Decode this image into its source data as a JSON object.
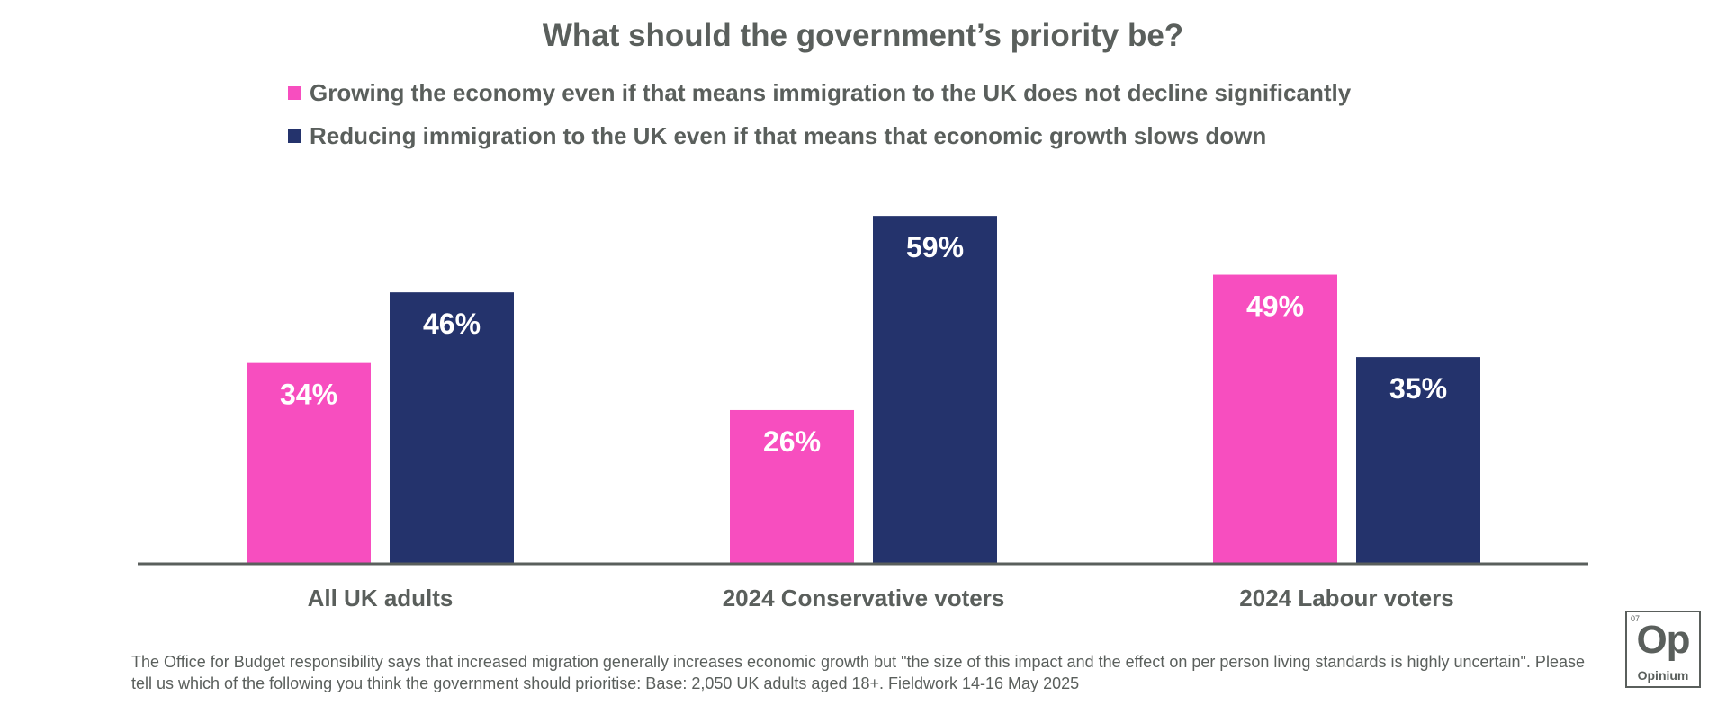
{
  "chart_data": {
    "type": "bar",
    "title": "What should the government’s priority be?",
    "categories": [
      "All UK adults",
      "2024 Conservative voters",
      "2024 Labour voters"
    ],
    "series": [
      {
        "name": "Growing the economy even if that means immigration to the UK does not decline significantly",
        "color": "#F74EBF",
        "values": [
          34,
          26,
          49
        ],
        "labels": [
          "34%",
          "26%",
          "49%"
        ]
      },
      {
        "name": "Reducing immigration to the UK even if that means that economic growth slows down",
        "color": "#24336C",
        "values": [
          46,
          59,
          35
        ],
        "labels": [
          "46%",
          "59%",
          "35%"
        ]
      }
    ],
    "xlabel": "",
    "ylabel": "",
    "ylim": [
      0,
      59
    ],
    "grid": false,
    "legend_position": "top-left"
  },
  "footnote": "The Office for Budget responsibility says that increased migration generally increases economic growth but \"the size of this impact and the effect on per person living standards is highly uncertain\". Please tell us which of the following you think the government should prioritise: Base: 2,050 UK adults aged 18+. Fieldwork 14-16 May 2025",
  "logo": {
    "number": "07",
    "symbol": "Op",
    "name": "Opinium"
  }
}
